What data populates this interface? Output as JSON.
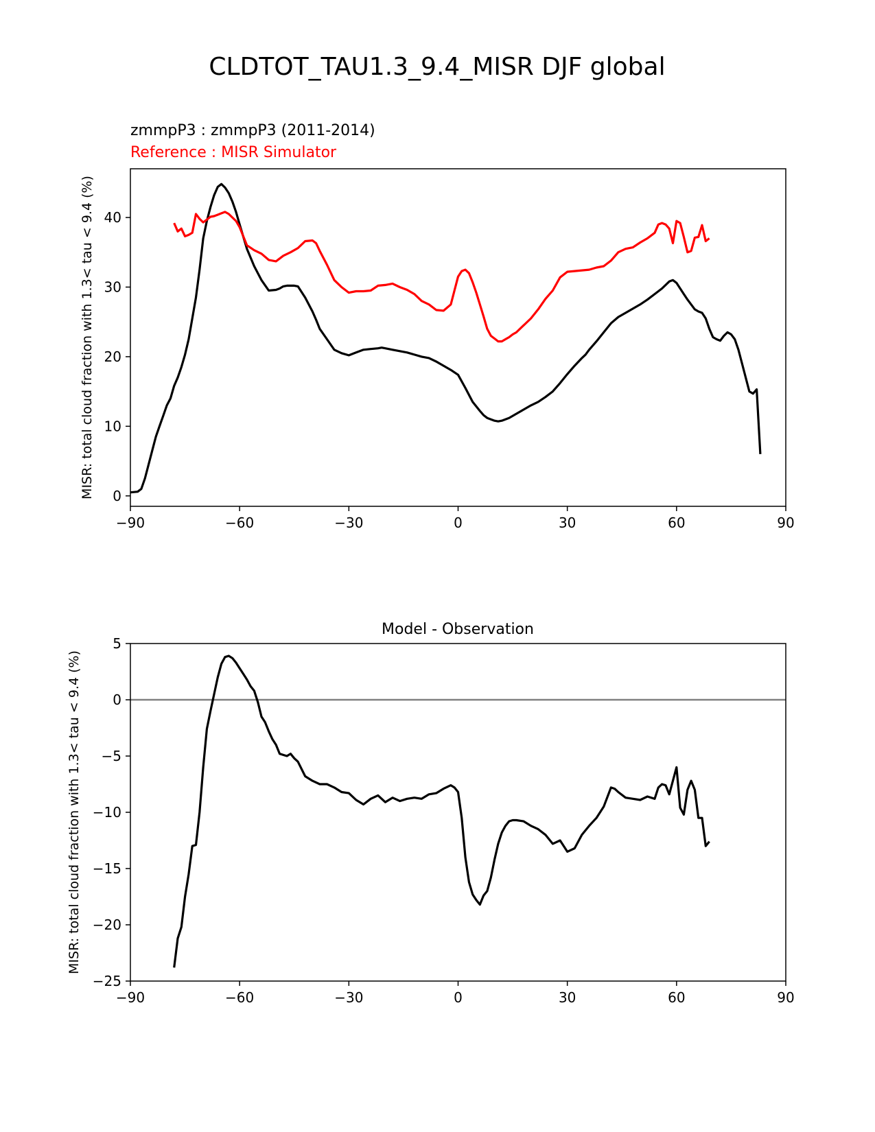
{
  "figure_title": "CLDTOT_TAU1.3_9.4_MISR DJF global",
  "chart_data": [
    {
      "type": "line",
      "test_label": "zmmpP3 : zmmpP3 (2011-2014)",
      "ref_label": "Reference : MISR Simulator",
      "title": "",
      "xlabel": "",
      "ylabel": "MISR: total cloud fraction with 1.3< tau < 9.4 (%)",
      "xlim": [
        -90,
        90
      ],
      "ylim": [
        -1.5,
        47
      ],
      "xticks": [
        -90,
        -60,
        -30,
        0,
        30,
        60,
        90
      ],
      "xtick_labels": [
        "−90",
        "−60",
        "−30",
        "0",
        "30",
        "60",
        "90"
      ],
      "yticks": [
        0,
        10,
        20,
        30,
        40
      ],
      "ytick_labels": [
        "0",
        "10",
        "20",
        "30",
        "40"
      ],
      "series": [
        {
          "name": "zmmpP3 : zmmpP3 (2011-2014)",
          "color": "#000000",
          "x": [
            -90,
            -88,
            -87,
            -86,
            -85,
            -84,
            -83,
            -82,
            -81,
            -80,
            -79,
            -78,
            -77,
            -76,
            -75,
            -74,
            -73,
            -72,
            -71,
            -70,
            -69,
            -68,
            -67,
            -66,
            -65,
            -64,
            -63,
            -62,
            -61,
            -60,
            -58,
            -56,
            -54,
            -52,
            -50,
            -49,
            -48,
            -47,
            -46,
            -45,
            -44,
            -42,
            -40,
            -39,
            -38,
            -36,
            -34,
            -32,
            -30,
            -28,
            -26,
            -24,
            -22,
            -21,
            -20,
            -18,
            -16,
            -14,
            -12,
            -10,
            -8,
            -6,
            -4,
            -2,
            0,
            2,
            4,
            6,
            7,
            8,
            10,
            11,
            12,
            13,
            14,
            16,
            18,
            20,
            22,
            24,
            26,
            28,
            30,
            32,
            34,
            35,
            36,
            38,
            40,
            42,
            44,
            46,
            48,
            50,
            52,
            54,
            56,
            58,
            59,
            60,
            61,
            62,
            63,
            64,
            65,
            66,
            67,
            68,
            69,
            70,
            71,
            72,
            73,
            74,
            75,
            76,
            77,
            78,
            79,
            80,
            81,
            82,
            83
          ],
          "y": [
            0.5,
            0.6,
            1.0,
            2.5,
            4.5,
            6.5,
            8.5,
            10.0,
            11.5,
            13.0,
            14.0,
            15.8,
            17.0,
            18.5,
            20.3,
            22.5,
            25.5,
            28.5,
            32.5,
            37.0,
            39.5,
            41.5,
            43.2,
            44.4,
            44.8,
            44.3,
            43.5,
            42.3,
            40.8,
            39.0,
            35.5,
            33.0,
            31.0,
            29.5,
            29.6,
            29.8,
            30.1,
            30.2,
            30.2,
            30.2,
            30.1,
            28.5,
            26.5,
            25.3,
            24.0,
            22.5,
            21.0,
            20.5,
            20.2,
            20.6,
            21.0,
            21.1,
            21.2,
            21.3,
            21.2,
            21.0,
            20.8,
            20.6,
            20.3,
            20.0,
            19.8,
            19.3,
            18.7,
            18.1,
            17.4,
            15.5,
            13.5,
            12.2,
            11.6,
            11.2,
            10.8,
            10.7,
            10.8,
            11.0,
            11.2,
            11.8,
            12.4,
            13.0,
            13.5,
            14.2,
            15.0,
            16.2,
            17.5,
            18.7,
            19.8,
            20.3,
            21.0,
            22.2,
            23.5,
            24.8,
            25.7,
            26.3,
            26.9,
            27.5,
            28.2,
            29.0,
            29.8,
            30.8,
            31.0,
            30.6,
            29.8,
            29.0,
            28.2,
            27.5,
            26.8,
            26.5,
            26.3,
            25.5,
            24.0,
            22.8,
            22.5,
            22.3,
            23.0,
            23.5,
            23.2,
            22.5,
            21.0,
            19.0,
            17.0,
            15.0,
            14.7,
            15.3,
            6.0
          ]
        },
        {
          "name": "Reference : MISR Simulator",
          "color": "#ff0000",
          "x": [
            -78,
            -77,
            -76,
            -75,
            -74,
            -73,
            -72,
            -71,
            -70,
            -69,
            -68,
            -67,
            -66,
            -65,
            -64,
            -63,
            -62,
            -61,
            -60,
            -58,
            -56,
            -54,
            -52,
            -50,
            -48,
            -46,
            -44,
            -42,
            -40,
            -39,
            -38,
            -36,
            -34,
            -32,
            -30,
            -28,
            -26,
            -24,
            -22,
            -20,
            -18,
            -16,
            -14,
            -12,
            -10,
            -8,
            -6,
            -4,
            -2,
            -1,
            0,
            1,
            2,
            3,
            4,
            5,
            6,
            7,
            8,
            9,
            10,
            11,
            12,
            13,
            14,
            15,
            16,
            18,
            20,
            22,
            24,
            26,
            28,
            30,
            32,
            34,
            36,
            38,
            40,
            42,
            44,
            46,
            48,
            50,
            52,
            54,
            55,
            56,
            57,
            58,
            59,
            60,
            61,
            62,
            63,
            64,
            65,
            66,
            67,
            68,
            69
          ],
          "y": [
            39.2,
            38.0,
            38.4,
            37.3,
            37.5,
            37.8,
            40.5,
            39.8,
            39.3,
            39.7,
            40.1,
            40.2,
            40.4,
            40.6,
            40.8,
            40.5,
            40.0,
            39.5,
            38.6,
            36.0,
            35.3,
            34.8,
            33.9,
            33.7,
            34.5,
            35.0,
            35.6,
            36.6,
            36.7,
            36.3,
            35.2,
            33.2,
            31.0,
            30.0,
            29.2,
            29.4,
            29.4,
            29.5,
            30.2,
            30.3,
            30.5,
            30.0,
            29.6,
            29.0,
            28.0,
            27.5,
            26.7,
            26.6,
            27.5,
            29.5,
            31.5,
            32.3,
            32.5,
            32.0,
            30.7,
            29.2,
            27.5,
            25.8,
            24.0,
            23.0,
            22.6,
            22.2,
            22.2,
            22.5,
            22.8,
            23.2,
            23.5,
            24.5,
            25.5,
            26.8,
            28.3,
            29.5,
            31.4,
            32.2,
            32.3,
            32.4,
            32.5,
            32.8,
            33.0,
            33.8,
            35.0,
            35.5,
            35.7,
            36.4,
            37.0,
            37.8,
            39.0,
            39.2,
            39.0,
            38.4,
            36.3,
            39.5,
            39.2,
            37.2,
            35.0,
            35.2,
            37.1,
            37.2,
            38.9,
            36.6,
            37.0
          ]
        }
      ]
    },
    {
      "type": "line",
      "title": "Model - Observation",
      "xlabel": "",
      "ylabel": "MISR: total cloud fraction with 1.3< tau < 9.4 (%)",
      "xlim": [
        -90,
        90
      ],
      "ylim": [
        -25,
        5
      ],
      "xticks": [
        -90,
        -60,
        -30,
        0,
        30,
        60,
        90
      ],
      "xtick_labels": [
        "−90",
        "−60",
        "−30",
        "0",
        "30",
        "60",
        "90"
      ],
      "yticks": [
        5,
        0,
        -5,
        -10,
        -15,
        -20,
        -25
      ],
      "ytick_labels": [
        "5",
        "0",
        "−5",
        "−10",
        "−15",
        "−20",
        "−25"
      ],
      "zero_line": 0,
      "zero_line_color": "#808080",
      "series": [
        {
          "name": "Model - Observation",
          "color": "#000000",
          "x": [
            -78,
            -77,
            -76,
            -75,
            -74,
            -73,
            -72,
            -71,
            -70,
            -69,
            -68,
            -67,
            -66,
            -65,
            -64,
            -63,
            -62,
            -61,
            -60,
            -59,
            -58,
            -57,
            -56,
            -55,
            -54,
            -53,
            -52,
            -51,
            -50,
            -49,
            -48,
            -47,
            -46,
            -45,
            -44,
            -42,
            -40,
            -38,
            -36,
            -34,
            -32,
            -30,
            -28,
            -26,
            -24,
            -22,
            -20,
            -18,
            -16,
            -14,
            -12,
            -10,
            -8,
            -6,
            -4,
            -2,
            -1,
            0,
            1,
            2,
            3,
            4,
            5,
            6,
            7,
            8,
            9,
            10,
            11,
            12,
            13,
            14,
            15,
            16,
            18,
            20,
            22,
            24,
            26,
            28,
            30,
            32,
            34,
            36,
            38,
            40,
            42,
            43,
            44,
            46,
            48,
            50,
            52,
            54,
            55,
            56,
            57,
            58,
            59,
            60,
            61,
            62,
            63,
            64,
            65,
            66,
            67,
            68,
            69
          ],
          "y": [
            -23.8,
            -21.2,
            -20.2,
            -17.5,
            -15.5,
            -13.0,
            -12.9,
            -10.0,
            -6.0,
            -2.6,
            -1.0,
            0.5,
            2.0,
            3.2,
            3.8,
            3.9,
            3.7,
            3.3,
            2.8,
            2.3,
            1.8,
            1.2,
            0.8,
            -0.2,
            -1.5,
            -2.0,
            -2.8,
            -3.5,
            -4.0,
            -4.8,
            -4.9,
            -5.0,
            -4.8,
            -5.2,
            -5.5,
            -6.8,
            -7.2,
            -7.5,
            -7.5,
            -7.8,
            -8.2,
            -8.3,
            -8.9,
            -9.3,
            -8.8,
            -8.5,
            -9.1,
            -8.7,
            -9.0,
            -8.8,
            -8.7,
            -8.8,
            -8.4,
            -8.3,
            -7.9,
            -7.6,
            -7.8,
            -8.2,
            -10.5,
            -14.0,
            -16.2,
            -17.3,
            -17.8,
            -18.2,
            -17.4,
            -17.0,
            -15.8,
            -14.2,
            -12.8,
            -11.8,
            -11.2,
            -10.8,
            -10.7,
            -10.7,
            -10.8,
            -11.2,
            -11.5,
            -12.0,
            -12.8,
            -12.5,
            -13.5,
            -13.2,
            -12.0,
            -11.2,
            -10.5,
            -9.5,
            -7.8,
            -7.9,
            -8.2,
            -8.7,
            -8.8,
            -8.9,
            -8.6,
            -8.8,
            -7.8,
            -7.5,
            -7.6,
            -8.4,
            -7.2,
            -6.0,
            -9.6,
            -10.2,
            -8.0,
            -7.2,
            -8.0,
            -10.5,
            -10.5,
            -13.0,
            -12.6
          ]
        }
      ]
    }
  ]
}
